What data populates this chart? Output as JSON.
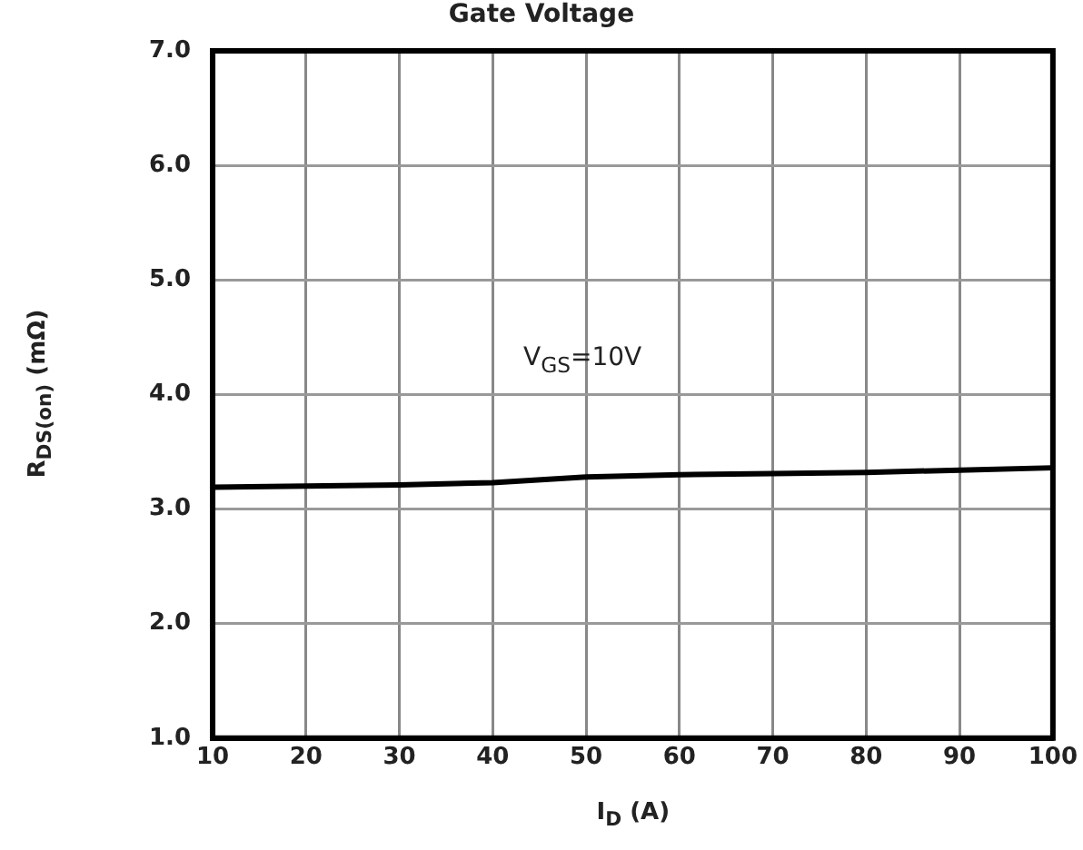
{
  "chart_data": {
    "type": "line",
    "title": "Gate Voltage",
    "xlabel": "I$_{D}$ (A)",
    "ylabel": "R$_{DS(on)}$ (mΩ)",
    "x": [
      10,
      20,
      30,
      40,
      50,
      60,
      70,
      80,
      90,
      100
    ],
    "series": [
      {
        "color": "#000000",
        "values": [
          3.19,
          3.2,
          3.21,
          3.23,
          3.28,
          3.3,
          3.31,
          3.32,
          3.34,
          3.36
        ]
      }
    ],
    "xlim": [
      10,
      100
    ],
    "xticks": [
      10,
      20,
      30,
      40,
      50,
      60,
      70,
      80,
      90,
      100
    ],
    "ylim": [
      1,
      7
    ],
    "yticks": [
      {
        "value": 1,
        "label": "1.0"
      },
      {
        "value": 2,
        "label": "2.0"
      },
      {
        "value": 3,
        "label": "3.0"
      },
      {
        "value": 4,
        "label": "4.0"
      },
      {
        "value": 5,
        "label": "5.0"
      },
      {
        "value": 6,
        "label": "6.0"
      },
      {
        "value": 7,
        "label": "7.0"
      }
    ],
    "annotations": [
      "V$_{GS}$=10V"
    ],
    "grid": true,
    "legend": false,
    "marker": "none",
    "line_style": "solid"
  }
}
